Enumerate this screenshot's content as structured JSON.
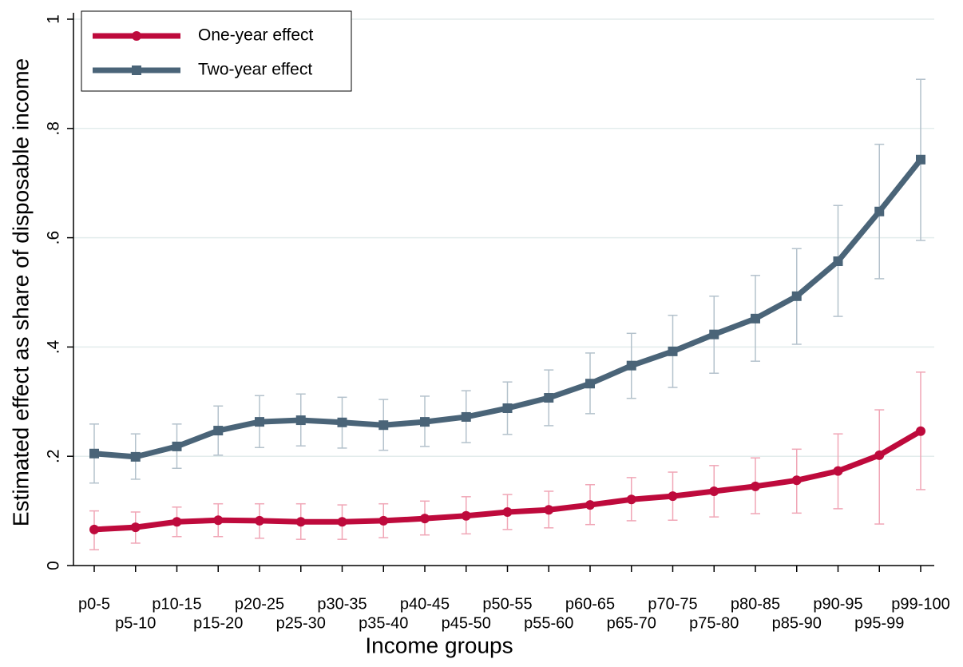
{
  "chart_data": {
    "type": "line",
    "x_label": "Income groups",
    "y_label": "Estimated effect as share of disposable income",
    "categories": [
      "p0-5",
      "p5-10",
      "p10-15",
      "p15-20",
      "p20-25",
      "p25-30",
      "p30-35",
      "p35-40",
      "p40-45",
      "p45-50",
      "p50-55",
      "p55-60",
      "p60-65",
      "p65-70",
      "p70-75",
      "p75-80",
      "p80-85",
      "p85-90",
      "p90-95",
      "p95-99",
      "p99-100"
    ],
    "ylim": [
      0,
      1
    ],
    "yticks": [
      0,
      {
        "value": 0.2,
        "label": ".2"
      },
      {
        "value": 0.4,
        "label": ".4"
      },
      {
        "value": 0.6,
        "label": ".6"
      },
      {
        "value": 0.8,
        "label": ".8"
      },
      1
    ],
    "grid": true,
    "legend": "top-left",
    "series": [
      {
        "name": "One-year effect",
        "color": "#be0a3c",
        "marker": "circle",
        "error_color": "#f0a6b6",
        "values": [
          0.066,
          0.07,
          0.08,
          0.083,
          0.082,
          0.08,
          0.08,
          0.082,
          0.086,
          0.091,
          0.098,
          0.102,
          0.111,
          0.121,
          0.127,
          0.136,
          0.145,
          0.156,
          0.173,
          0.202,
          0.246
        ],
        "ci_low": [
          0.029,
          0.041,
          0.053,
          0.053,
          0.05,
          0.048,
          0.048,
          0.051,
          0.056,
          0.058,
          0.066,
          0.069,
          0.075,
          0.082,
          0.083,
          0.089,
          0.095,
          0.096,
          0.104,
          0.076,
          0.139
        ],
        "ci_high": [
          0.1,
          0.098,
          0.107,
          0.113,
          0.113,
          0.113,
          0.111,
          0.113,
          0.118,
          0.126,
          0.13,
          0.136,
          0.148,
          0.161,
          0.171,
          0.183,
          0.197,
          0.213,
          0.241,
          0.285,
          0.354
        ]
      },
      {
        "name": "Two-year effect",
        "color": "#4a6478",
        "marker": "square",
        "error_color": "#b4c2cc",
        "values": [
          0.205,
          0.199,
          0.218,
          0.247,
          0.263,
          0.266,
          0.262,
          0.257,
          0.263,
          0.272,
          0.288,
          0.307,
          0.333,
          0.366,
          0.392,
          0.423,
          0.452,
          0.493,
          0.557,
          0.648,
          0.743
        ],
        "ci_low": [
          0.151,
          0.158,
          0.178,
          0.202,
          0.216,
          0.219,
          0.215,
          0.211,
          0.218,
          0.225,
          0.24,
          0.256,
          0.278,
          0.306,
          0.326,
          0.352,
          0.374,
          0.405,
          0.456,
          0.525,
          0.595
        ],
        "ci_high": [
          0.259,
          0.241,
          0.259,
          0.292,
          0.311,
          0.314,
          0.308,
          0.304,
          0.31,
          0.32,
          0.336,
          0.358,
          0.389,
          0.425,
          0.458,
          0.493,
          0.531,
          0.58,
          0.659,
          0.771,
          0.89
        ]
      }
    ]
  }
}
